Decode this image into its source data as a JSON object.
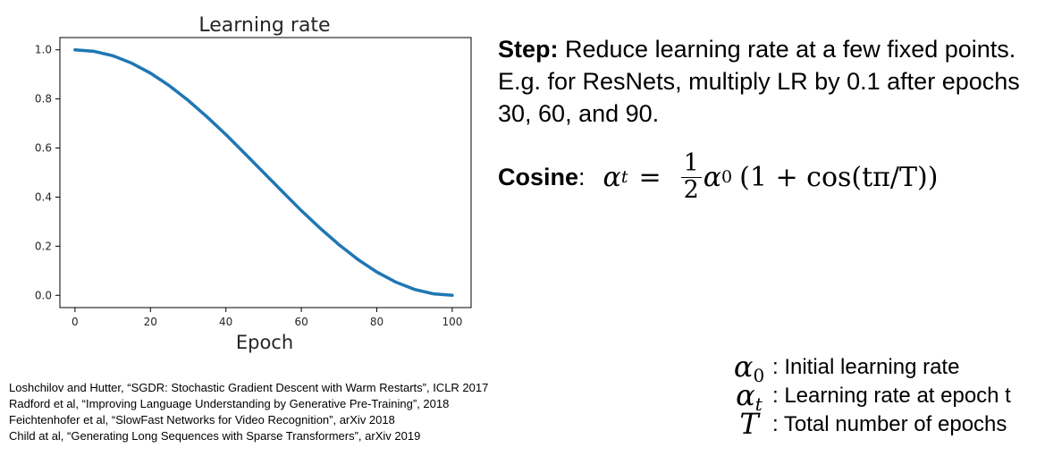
{
  "chart_data": {
    "type": "line",
    "title": "Learning rate",
    "xlabel": "Epoch",
    "ylabel": "",
    "xlim": [
      -4,
      105
    ],
    "ylim": [
      -0.05,
      1.05
    ],
    "xticks": [
      0,
      20,
      40,
      60,
      80,
      100
    ],
    "yticks": [
      0.0,
      0.2,
      0.4,
      0.6,
      0.8,
      1.0
    ],
    "xtick_labels": [
      "0",
      "20",
      "40",
      "60",
      "80",
      "100"
    ],
    "ytick_labels": [
      "0.0",
      "0.2",
      "0.4",
      "0.6",
      "0.8",
      "1.0"
    ],
    "grid": false,
    "series": [
      {
        "color": "#1f77b4",
        "x": [
          0,
          5,
          10,
          15,
          20,
          25,
          30,
          35,
          40,
          45,
          50,
          55,
          60,
          65,
          70,
          75,
          80,
          85,
          90,
          95,
          100
        ],
        "y": [
          1.0,
          0.994,
          0.976,
          0.946,
          0.905,
          0.854,
          0.794,
          0.727,
          0.655,
          0.578,
          0.5,
          0.422,
          0.345,
          0.273,
          0.206,
          0.146,
          0.095,
          0.054,
          0.024,
          0.006,
          0.0
        ]
      }
    ]
  },
  "step": {
    "label": "Step:",
    "text": " Reduce learning rate at a few fixed points. E.g. for ResNets, multiply LR by 0.1 after epochs 30, 60, and 90."
  },
  "cosine": {
    "label": "Cosine",
    "colon": ":",
    "alpha": "α",
    "sub_t": "t",
    "sub_0": "0",
    "eq": "=",
    "num": "1",
    "den": "2",
    "expr": "(1 + cos(tπ/T))"
  },
  "legend": [
    {
      "symbol": "α",
      "sub": "0",
      "text": ": Initial learning rate"
    },
    {
      "symbol": "α",
      "sub": "t",
      "text": ": Learning rate at epoch t"
    },
    {
      "symbol": "T",
      "sub": "",
      "text": ": Total number of epochs"
    }
  ],
  "references": [
    "Loshchilov and Hutter, “SGDR: Stochastic Gradient Descent with Warm Restarts”, ICLR 2017",
    "Radford et al, “Improving Language Understanding by Generative Pre-Training”, 2018",
    "Feichtenhofer et al, “SlowFast Networks for Video Recognition”, arXiv 2018",
    "Child at al, “Generating Long Sequences with Sparse Transformers”, arXiv 2019"
  ]
}
